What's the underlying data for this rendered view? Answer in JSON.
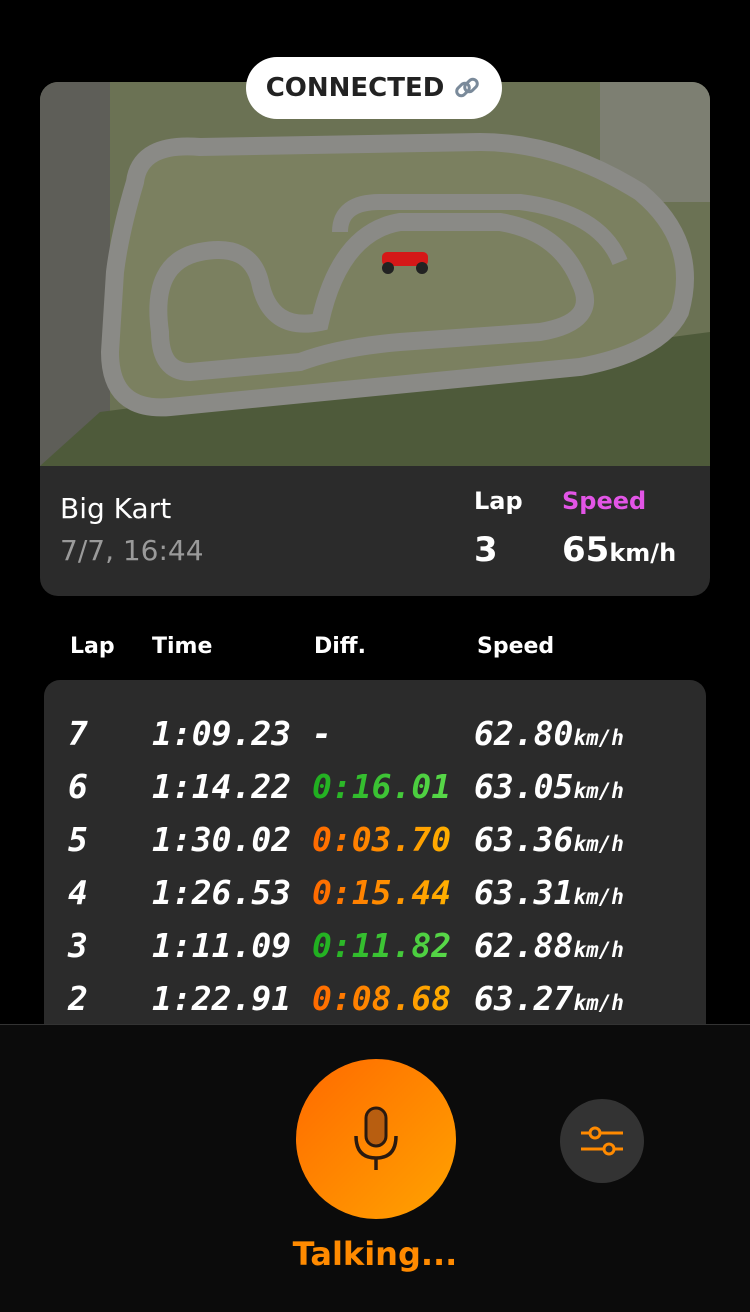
{
  "status": {
    "label": "CONNECTED",
    "icon": "link-icon"
  },
  "session": {
    "track_name": "Big Kart",
    "datetime": "7/7, 16:44",
    "lap_label": "Lap",
    "lap_value": "3",
    "speed_label": "Speed",
    "speed_value": "65",
    "speed_unit": "km/h"
  },
  "table": {
    "headers": [
      "Lap",
      "Time",
      "Diff.",
      "Speed"
    ],
    "rows": [
      {
        "lap": "7",
        "time": "1:09.23",
        "diff": "-",
        "diff_color": "white",
        "speed": "62.80",
        "unit": "km/h"
      },
      {
        "lap": "6",
        "time": "1:14.22",
        "diff": "0:16.01",
        "diff_color": "green",
        "speed": "63.05",
        "unit": "km/h"
      },
      {
        "lap": "5",
        "time": "1:30.02",
        "diff": "0:03.70",
        "diff_color": "orange",
        "speed": "63.36",
        "unit": "km/h"
      },
      {
        "lap": "4",
        "time": "1:26.53",
        "diff": "0:15.44",
        "diff_color": "orange",
        "speed": "63.31",
        "unit": "km/h"
      },
      {
        "lap": "3",
        "time": "1:11.09",
        "diff": "0:11.82",
        "diff_color": "green",
        "speed": "62.88",
        "unit": "km/h"
      },
      {
        "lap": "2",
        "time": "1:22.91",
        "diff": "0:08.68",
        "diff_color": "orange",
        "speed": "63.27",
        "unit": "km/h"
      }
    ]
  },
  "controls": {
    "status_text": "Talking...",
    "mic_icon": "microphone-icon",
    "settings_icon": "sliders-icon"
  },
  "colors": {
    "accent": "#ff8a00",
    "speed_label": "#e255e6",
    "green": "#3cc43a",
    "orange": "#ff7a00"
  }
}
